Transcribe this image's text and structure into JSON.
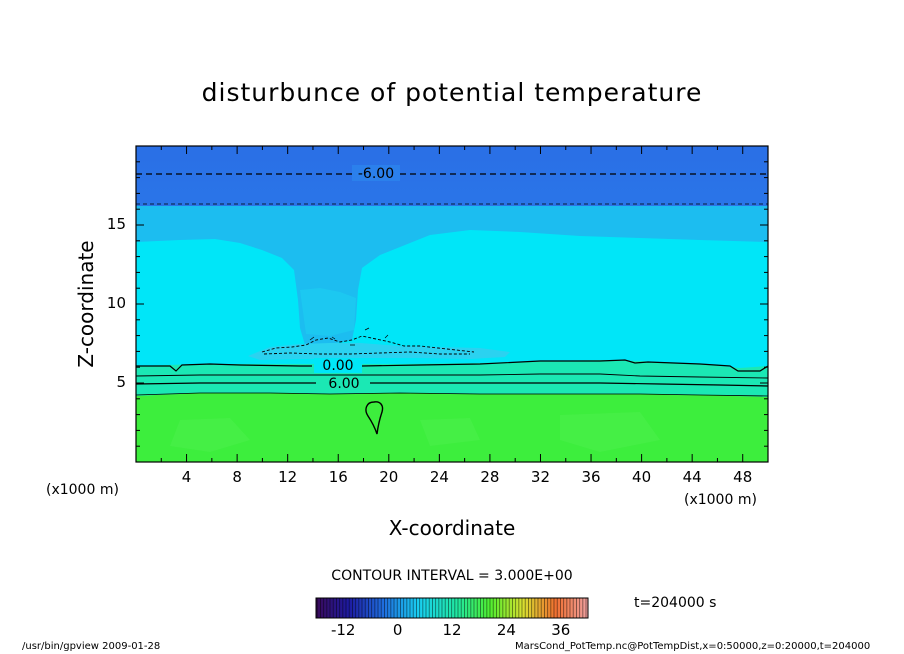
{
  "chart_data": {
    "type": "heatmap",
    "title": "disturbunce of potential temperature",
    "xlabel": "X-coordinate",
    "ylabel": "Z-coordinate",
    "x_unit_left": "(x1000 m)",
    "x_unit_right": "(x1000 m)",
    "xlim": [
      0,
      50
    ],
    "ylim": [
      0,
      20
    ],
    "x_ticks": [
      "4",
      "8",
      "12",
      "16",
      "20",
      "24",
      "28",
      "32",
      "36",
      "40",
      "44",
      "48"
    ],
    "y_ticks": [
      "5",
      "10",
      "15"
    ],
    "contour_labels": [
      {
        "text": "-6.00",
        "x": 19,
        "z": 18.2
      },
      {
        "text": "0.00",
        "x": 16,
        "z": 6.0
      },
      {
        "text": "6.00",
        "x": 16,
        "z": 4.9
      }
    ],
    "contour_interval_text": "CONTOUR INTERVAL = 3.000E+00",
    "colorbar": {
      "ticks": [
        "-12",
        "0",
        "12",
        "24",
        "36"
      ],
      "range": [
        -18,
        42
      ]
    },
    "time_label": "t=204000 s",
    "colors": {
      "top_band": "#2f7fe8",
      "upper_layer": "#1fc0f0",
      "middle_layer": "#00e8f8",
      "lower_band": "#18e8b0",
      "surface_layer": "#3cee3c"
    }
  },
  "footer": {
    "program": "/usr/bin/gpview   2009-01-28",
    "source": "MarsCond_PotTemp.nc@PotTempDist,x=0:50000,z=0:20000,t=204000"
  }
}
